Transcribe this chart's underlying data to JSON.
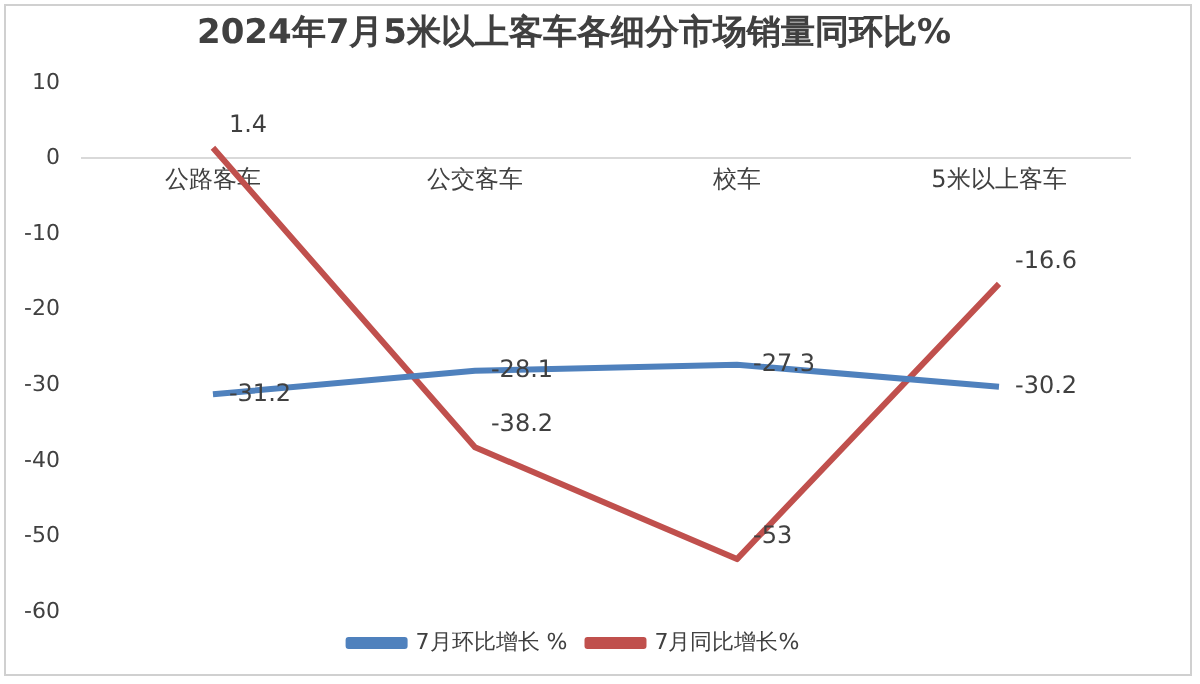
{
  "chart_data": {
    "type": "line",
    "title": "2024年7月5米以上客车各细分市场销量同环比%",
    "categories": [
      "公路客车",
      "公交客车",
      "校车",
      "5米以上客车"
    ],
    "series": [
      {
        "name": "7月环比增长 %",
        "color": "#4f81bd",
        "values": [
          -31.2,
          -28.1,
          -27.3,
          -30.2
        ]
      },
      {
        "name": "7月同比增长%",
        "color": "#c0504d",
        "values": [
          1.4,
          -38.2,
          -53,
          -16.6
        ]
      }
    ],
    "ylim": [
      -60,
      10
    ],
    "yticks": [
      -60,
      -50,
      -40,
      -30,
      -20,
      -10,
      0,
      10
    ],
    "grid": false,
    "legend": "bottom",
    "marker": "none",
    "data_labels": true
  }
}
